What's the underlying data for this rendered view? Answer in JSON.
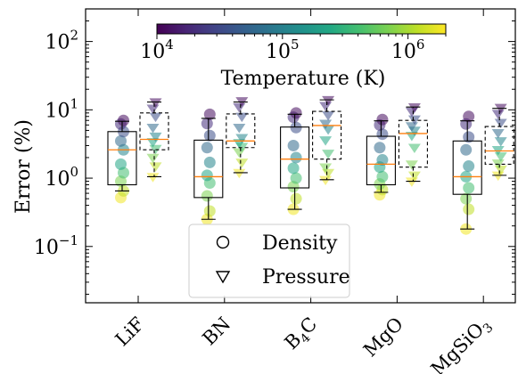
{
  "chart_data": {
    "type": "box+scatter",
    "ylabel": "Error (%)",
    "yscale": "log",
    "ylim": [
      0.015,
      300
    ],
    "y_ticks": [
      {
        "base": "10",
        "exp": "2",
        "value": 100
      },
      {
        "base": "10",
        "exp": "1",
        "value": 10
      },
      {
        "base": "10",
        "exp": "0",
        "value": 1
      },
      {
        "base": "10",
        "exp": "−1",
        "value": 0.1
      }
    ],
    "categories": [
      {
        "label": "LiF"
      },
      {
        "label": "BN"
      },
      {
        "label": "B",
        "sub": "4",
        "suffix": "C"
      },
      {
        "label": "MgO"
      },
      {
        "label": "MgSiO",
        "sub": "3"
      }
    ],
    "colorbar": {
      "label": "Temperature (K)",
      "scale": "log",
      "range": [
        10000,
        2000000
      ],
      "colormap": "viridis",
      "ticks": [
        {
          "base": "10",
          "exp": "4",
          "value": 10000
        },
        {
          "base": "10",
          "exp": "5",
          "value": 100000
        },
        {
          "base": "10",
          "exp": "6",
          "value": 1000000
        }
      ]
    },
    "legend": {
      "placement": "lower-center",
      "entries": [
        {
          "label": "Density",
          "marker": "circle"
        },
        {
          "label": "Pressure",
          "marker": "triangle-down"
        }
      ]
    },
    "median_color": "#ff7f0e",
    "series": [
      {
        "name": "Density",
        "box_style": "solid",
        "boxes": [
          {
            "category": "LiF",
            "whisker_low": 0.65,
            "q1": 0.8,
            "median": 2.6,
            "q3": 4.8,
            "whisker_high": 6.8
          },
          {
            "category": "BN",
            "whisker_low": 0.25,
            "q1": 0.52,
            "median": 1.05,
            "q3": 3.6,
            "whisker_high": 7.5
          },
          {
            "category": "B4C",
            "whisker_low": 0.35,
            "q1": 0.72,
            "median": 1.9,
            "q3": 5.6,
            "whisker_high": 8.6
          },
          {
            "category": "MgO",
            "whisker_low": 0.62,
            "q1": 0.8,
            "median": 1.6,
            "q3": 4.1,
            "whisker_high": 6.9
          },
          {
            "category": "MgSiO3",
            "whisker_low": 0.18,
            "q1": 0.58,
            "median": 1.05,
            "q3": 3.5,
            "whisker_high": 6.9
          }
        ],
        "points": [
          [
            {
              "y": 0.52,
              "t": 1800000
            },
            {
              "y": 0.65,
              "t": 1200000
            },
            {
              "y": 0.9,
              "t": 700000
            },
            {
              "y": 1.2,
              "t": 400000
            },
            {
              "y": 1.6,
              "t": 230000
            },
            {
              "y": 2.6,
              "t": 110000
            },
            {
              "y": 3.5,
              "t": 60000
            },
            {
              "y": 4.8,
              "t": 35000
            },
            {
              "y": 6.2,
              "t": 20000
            },
            {
              "y": 7.0,
              "t": 12000
            }
          ],
          [
            {
              "y": 0.25,
              "t": 1800000
            },
            {
              "y": 0.33,
              "t": 1200000
            },
            {
              "y": 0.55,
              "t": 700000
            },
            {
              "y": 0.85,
              "t": 400000
            },
            {
              "y": 1.1,
              "t": 230000
            },
            {
              "y": 1.7,
              "t": 110000
            },
            {
              "y": 2.8,
              "t": 60000
            },
            {
              "y": 4.2,
              "t": 35000
            },
            {
              "y": 6.3,
              "t": 20000
            },
            {
              "y": 8.6,
              "t": 12000
            }
          ],
          [
            {
              "y": 0.35,
              "t": 1800000
            },
            {
              "y": 0.5,
              "t": 1200000
            },
            {
              "y": 0.75,
              "t": 700000
            },
            {
              "y": 1.0,
              "t": 400000
            },
            {
              "y": 1.4,
              "t": 230000
            },
            {
              "y": 2.0,
              "t": 110000
            },
            {
              "y": 3.0,
              "t": 60000
            },
            {
              "y": 5.5,
              "t": 35000
            },
            {
              "y": 7.8,
              "t": 20000
            },
            {
              "y": 9.0,
              "t": 12000
            }
          ],
          [
            {
              "y": 0.57,
              "t": 1800000
            },
            {
              "y": 0.68,
              "t": 1200000
            },
            {
              "y": 0.82,
              "t": 700000
            },
            {
              "y": 1.05,
              "t": 400000
            },
            {
              "y": 1.45,
              "t": 230000
            },
            {
              "y": 1.85,
              "t": 110000
            },
            {
              "y": 2.8,
              "t": 60000
            },
            {
              "y": 4.4,
              "t": 35000
            },
            {
              "y": 6.0,
              "t": 20000
            },
            {
              "y": 7.2,
              "t": 12000
            }
          ],
          [
            {
              "y": 0.18,
              "t": 1800000
            },
            {
              "y": 0.35,
              "t": 1200000
            },
            {
              "y": 0.5,
              "t": 700000
            },
            {
              "y": 0.72,
              "t": 400000
            },
            {
              "y": 1.05,
              "t": 230000
            },
            {
              "y": 1.5,
              "t": 110000
            },
            {
              "y": 2.6,
              "t": 60000
            },
            {
              "y": 4.0,
              "t": 35000
            },
            {
              "y": 6.2,
              "t": 20000
            },
            {
              "y": 8.0,
              "t": 12000
            }
          ]
        ]
      },
      {
        "name": "Pressure",
        "box_style": "dashed",
        "boxes": [
          {
            "category": "LiF",
            "whisker_low": 1.05,
            "q1": 2.6,
            "median": 3.7,
            "q3": 9.0,
            "whisker_high": 13.0
          },
          {
            "category": "BN",
            "whisker_low": 1.2,
            "q1": 2.8,
            "median": 3.5,
            "q3": 8.7,
            "whisker_high": 13.0
          },
          {
            "category": "B4C",
            "whisker_low": 0.95,
            "q1": 1.9,
            "median": 5.9,
            "q3": 9.5,
            "whisker_high": 14.0
          },
          {
            "category": "MgO",
            "whisker_low": 0.9,
            "q1": 1.45,
            "median": 4.5,
            "q3": 7.0,
            "whisker_high": 11.0
          },
          {
            "category": "MgSiO3",
            "whisker_low": 1.1,
            "q1": 1.6,
            "median": 2.5,
            "q3": 5.7,
            "whisker_high": 10.5
          }
        ],
        "points": [
          [
            {
              "y": 1.05,
              "t": 1800000
            },
            {
              "y": 1.5,
              "t": 1200000
            },
            {
              "y": 2.0,
              "t": 700000
            },
            {
              "y": 2.7,
              "t": 400000
            },
            {
              "y": 3.4,
              "t": 230000
            },
            {
              "y": 4.1,
              "t": 110000
            },
            {
              "y": 5.5,
              "t": 60000
            },
            {
              "y": 8.0,
              "t": 35000
            },
            {
              "y": 10.5,
              "t": 20000
            },
            {
              "y": 13.0,
              "t": 12000
            }
          ],
          [
            {
              "y": 1.2,
              "t": 1800000
            },
            {
              "y": 1.7,
              "t": 1200000
            },
            {
              "y": 2.4,
              "t": 700000
            },
            {
              "y": 2.9,
              "t": 400000
            },
            {
              "y": 3.3,
              "t": 230000
            },
            {
              "y": 3.9,
              "t": 110000
            },
            {
              "y": 5.5,
              "t": 60000
            },
            {
              "y": 8.0,
              "t": 35000
            },
            {
              "y": 11.0,
              "t": 20000
            },
            {
              "y": 13.5,
              "t": 12000
            }
          ],
          [
            {
              "y": 0.95,
              "t": 1800000
            },
            {
              "y": 1.2,
              "t": 1200000
            },
            {
              "y": 1.45,
              "t": 700000
            },
            {
              "y": 2.3,
              "t": 400000
            },
            {
              "y": 3.6,
              "t": 230000
            },
            {
              "y": 5.2,
              "t": 110000
            },
            {
              "y": 6.3,
              "t": 60000
            },
            {
              "y": 8.4,
              "t": 35000
            },
            {
              "y": 11.5,
              "t": 20000
            },
            {
              "y": 14.0,
              "t": 12000
            }
          ],
          [
            {
              "y": 0.9,
              "t": 1800000
            },
            {
              "y": 1.1,
              "t": 1200000
            },
            {
              "y": 1.6,
              "t": 700000
            },
            {
              "y": 2.8,
              "t": 400000
            },
            {
              "y": 4.2,
              "t": 230000
            },
            {
              "y": 5.0,
              "t": 110000
            },
            {
              "y": 5.8,
              "t": 60000
            },
            {
              "y": 7.3,
              "t": 35000
            },
            {
              "y": 9.5,
              "t": 20000
            },
            {
              "y": 11.0,
              "t": 12000
            }
          ],
          [
            {
              "y": 1.1,
              "t": 1800000
            },
            {
              "y": 1.35,
              "t": 1200000
            },
            {
              "y": 1.65,
              "t": 700000
            },
            {
              "y": 2.1,
              "t": 400000
            },
            {
              "y": 2.6,
              "t": 230000
            },
            {
              "y": 3.5,
              "t": 110000
            },
            {
              "y": 4.6,
              "t": 60000
            },
            {
              "y": 6.5,
              "t": 35000
            },
            {
              "y": 8.8,
              "t": 20000
            },
            {
              "y": 10.8,
              "t": 12000
            }
          ]
        ]
      }
    ]
  }
}
